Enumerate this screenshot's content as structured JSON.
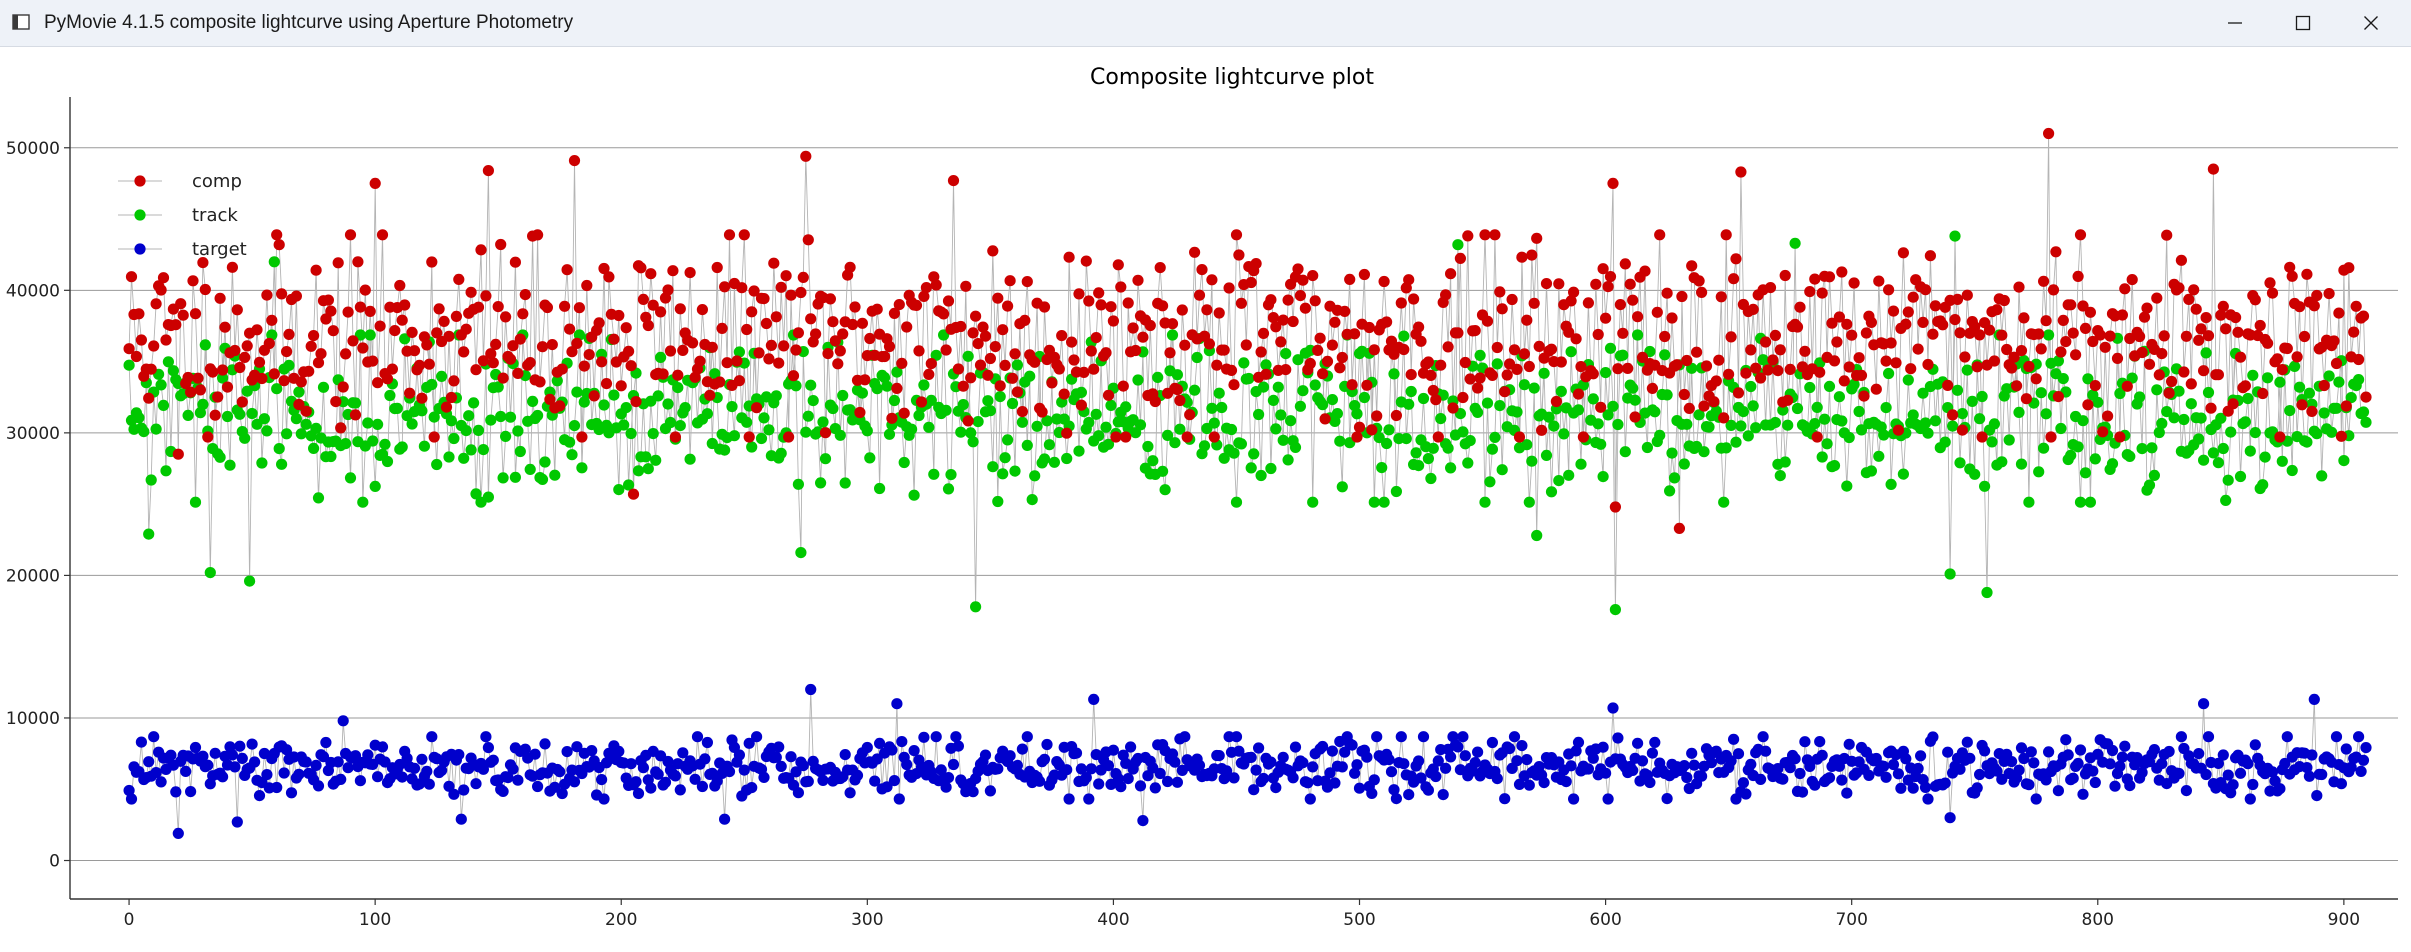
{
  "window": {
    "title": "PyMovie 4.1.5 composite lightcurve using Aperture Photometry",
    "controls": [
      "minimize",
      "maximize",
      "close"
    ]
  },
  "chart_data": {
    "type": "scatter",
    "title": "Composite lightcurve plot",
    "xlabel": "",
    "ylabel": "",
    "xlim": [
      -24,
      922
    ],
    "ylim": [
      -2700,
      53000
    ],
    "x_ticks": [
      0,
      100,
      200,
      300,
      400,
      500,
      600,
      700,
      800,
      900
    ],
    "y_ticks": [
      0,
      10000,
      20000,
      30000,
      40000,
      50000
    ],
    "grid": "horizontal",
    "legend_position": "top-left",
    "connecting_lines": true,
    "n_points": 910,
    "series": [
      {
        "name": "comp",
        "color": "#cc0000",
        "generator": {
          "mean": 36800,
          "spread": 5200,
          "seed": 11
        },
        "extremes": [
          {
            "x": 181,
            "y": 49100
          },
          {
            "x": 275,
            "y": 49400
          },
          {
            "x": 146,
            "y": 48400
          },
          {
            "x": 780,
            "y": 51000
          },
          {
            "x": 847,
            "y": 48500
          },
          {
            "x": 655,
            "y": 48300
          },
          {
            "x": 335,
            "y": 47700
          },
          {
            "x": 603,
            "y": 47500
          },
          {
            "x": 100,
            "y": 47500
          },
          {
            "x": 604,
            "y": 24800
          },
          {
            "x": 630,
            "y": 23300
          },
          {
            "x": 205,
            "y": 25700
          },
          {
            "x": 20,
            "y": 28500
          }
        ]
      },
      {
        "name": "track",
        "color": "#00c800",
        "generator": {
          "mean": 31000,
          "spread": 4300,
          "seed": 29
        },
        "extremes": [
          {
            "x": 33,
            "y": 20200
          },
          {
            "x": 49,
            "y": 19600
          },
          {
            "x": 344,
            "y": 17800
          },
          {
            "x": 604,
            "y": 17600
          },
          {
            "x": 755,
            "y": 18800
          },
          {
            "x": 740,
            "y": 20100
          },
          {
            "x": 8,
            "y": 22900
          },
          {
            "x": 273,
            "y": 21600
          },
          {
            "x": 572,
            "y": 22800
          },
          {
            "x": 540,
            "y": 43200
          },
          {
            "x": 677,
            "y": 43300
          },
          {
            "x": 742,
            "y": 43800
          },
          {
            "x": 59,
            "y": 42000
          }
        ]
      },
      {
        "name": "target",
        "color": "#0000cc",
        "generator": {
          "mean": 6500,
          "spread": 1600,
          "seed": 47
        },
        "extremes": [
          {
            "x": 277,
            "y": 12000
          },
          {
            "x": 392,
            "y": 11300
          },
          {
            "x": 888,
            "y": 11300
          },
          {
            "x": 312,
            "y": 11000
          },
          {
            "x": 843,
            "y": 11000
          },
          {
            "x": 603,
            "y": 10700
          },
          {
            "x": 20,
            "y": 1900
          },
          {
            "x": 44,
            "y": 2700
          },
          {
            "x": 135,
            "y": 2900
          },
          {
            "x": 242,
            "y": 2900
          },
          {
            "x": 412,
            "y": 2800
          },
          {
            "x": 740,
            "y": 3000
          },
          {
            "x": 87,
            "y": 9800
          }
        ]
      }
    ]
  }
}
